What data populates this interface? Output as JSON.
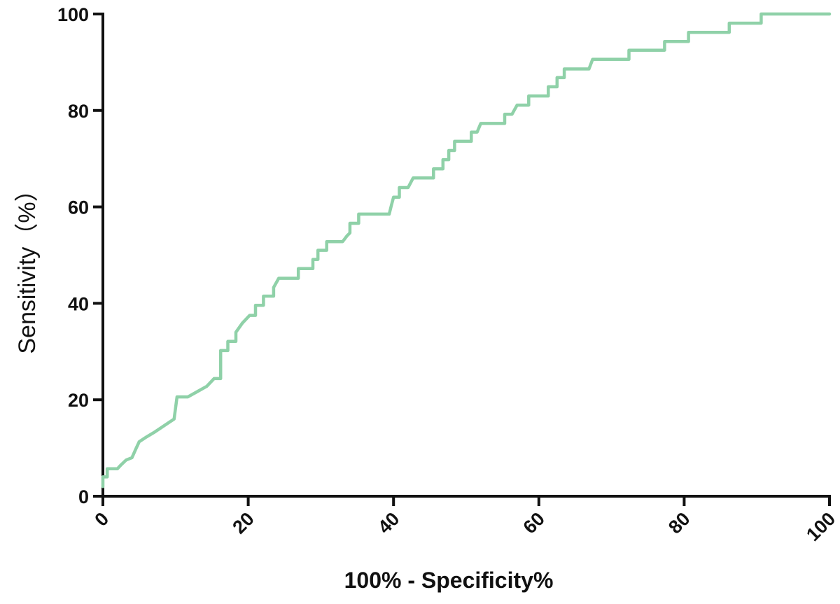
{
  "chart_data": {
    "type": "line",
    "xlabel": "100% - Specificity%",
    "ylabel": "Sensitivity（%）",
    "xlim": [
      0,
      100
    ],
    "ylim": [
      0,
      100
    ],
    "xticks": [
      0,
      20,
      40,
      60,
      80,
      100
    ],
    "yticks": [
      0,
      20,
      40,
      60,
      80,
      100
    ],
    "xtick_labels": [
      "0",
      "20",
      "40",
      "60",
      "80",
      "100"
    ],
    "ytick_labels": [
      "0",
      "20",
      "40",
      "60",
      "80",
      "100"
    ],
    "grid": false,
    "series": [
      {
        "color": "#8fd1a8",
        "step": true,
        "points": [
          [
            0,
            2
          ],
          [
            0,
            4
          ],
          [
            0.6,
            4
          ],
          [
            0.6,
            5.7
          ],
          [
            2.0,
            5.7
          ],
          [
            2.5,
            6.5
          ],
          [
            3.2,
            7.5
          ],
          [
            4.0,
            8.0
          ],
          [
            4.6,
            10
          ],
          [
            5.0,
            11.3
          ],
          [
            6.0,
            12.3
          ],
          [
            7.0,
            13.2
          ],
          [
            8.0,
            14.2
          ],
          [
            9.0,
            15.2
          ],
          [
            9.8,
            16
          ],
          [
            10.2,
            20.6
          ],
          [
            11.7,
            20.6
          ],
          [
            13.0,
            21.7
          ],
          [
            14.3,
            22.8
          ],
          [
            15.3,
            24.4
          ],
          [
            16.2,
            24.4
          ],
          [
            16.2,
            30.2
          ],
          [
            17.2,
            30.2
          ],
          [
            17.2,
            32.1
          ],
          [
            18.3,
            32.1
          ],
          [
            18.3,
            34.0
          ],
          [
            19.2,
            35.9
          ],
          [
            20.2,
            37.5
          ],
          [
            21.0,
            37.5
          ],
          [
            21.0,
            39.6
          ],
          [
            22.1,
            39.6
          ],
          [
            22.1,
            41.5
          ],
          [
            23.5,
            41.5
          ],
          [
            23.5,
            43.3
          ],
          [
            24.2,
            45.2
          ],
          [
            26.9,
            45.2
          ],
          [
            26.9,
            47.2
          ],
          [
            28.9,
            47.2
          ],
          [
            28.9,
            49.1
          ],
          [
            29.6,
            49.1
          ],
          [
            29.6,
            51.0
          ],
          [
            30.8,
            51.0
          ],
          [
            30.8,
            52.8
          ],
          [
            33.0,
            52.8
          ],
          [
            33.6,
            54.0
          ],
          [
            34.0,
            54.6
          ],
          [
            34.0,
            56.6
          ],
          [
            35.2,
            56.6
          ],
          [
            35.2,
            58.5
          ],
          [
            39.4,
            58.5
          ],
          [
            39.7,
            60.3
          ],
          [
            40.0,
            62.0
          ],
          [
            40.8,
            62.0
          ],
          [
            40.8,
            64.0
          ],
          [
            42.0,
            64.0
          ],
          [
            42.7,
            66.0
          ],
          [
            45.5,
            66.0
          ],
          [
            45.5,
            67.9
          ],
          [
            46.8,
            67.9
          ],
          [
            46.8,
            69.8
          ],
          [
            47.6,
            69.8
          ],
          [
            47.6,
            71.7
          ],
          [
            48.4,
            71.7
          ],
          [
            48.4,
            73.6
          ],
          [
            50.7,
            73.6
          ],
          [
            50.7,
            75.5
          ],
          [
            51.5,
            75.5
          ],
          [
            52.0,
            77.3
          ],
          [
            55.3,
            77.3
          ],
          [
            55.3,
            79.2
          ],
          [
            56.3,
            79.2
          ],
          [
            57.0,
            81.1
          ],
          [
            58.6,
            81.1
          ],
          [
            58.6,
            83.0
          ],
          [
            61.3,
            83.0
          ],
          [
            61.3,
            84.9
          ],
          [
            62.5,
            84.9
          ],
          [
            62.5,
            86.8
          ],
          [
            63.5,
            86.8
          ],
          [
            63.5,
            88.6
          ],
          [
            66.9,
            88.6
          ],
          [
            67.4,
            90.6
          ],
          [
            72.4,
            90.6
          ],
          [
            72.4,
            92.5
          ],
          [
            77.3,
            92.5
          ],
          [
            77.3,
            94.3
          ],
          [
            80.6,
            94.3
          ],
          [
            80.6,
            96.2
          ],
          [
            86.2,
            96.2
          ],
          [
            86.2,
            98.1
          ],
          [
            90.6,
            98.1
          ],
          [
            90.6,
            100
          ],
          [
            100,
            100
          ]
        ]
      }
    ]
  }
}
